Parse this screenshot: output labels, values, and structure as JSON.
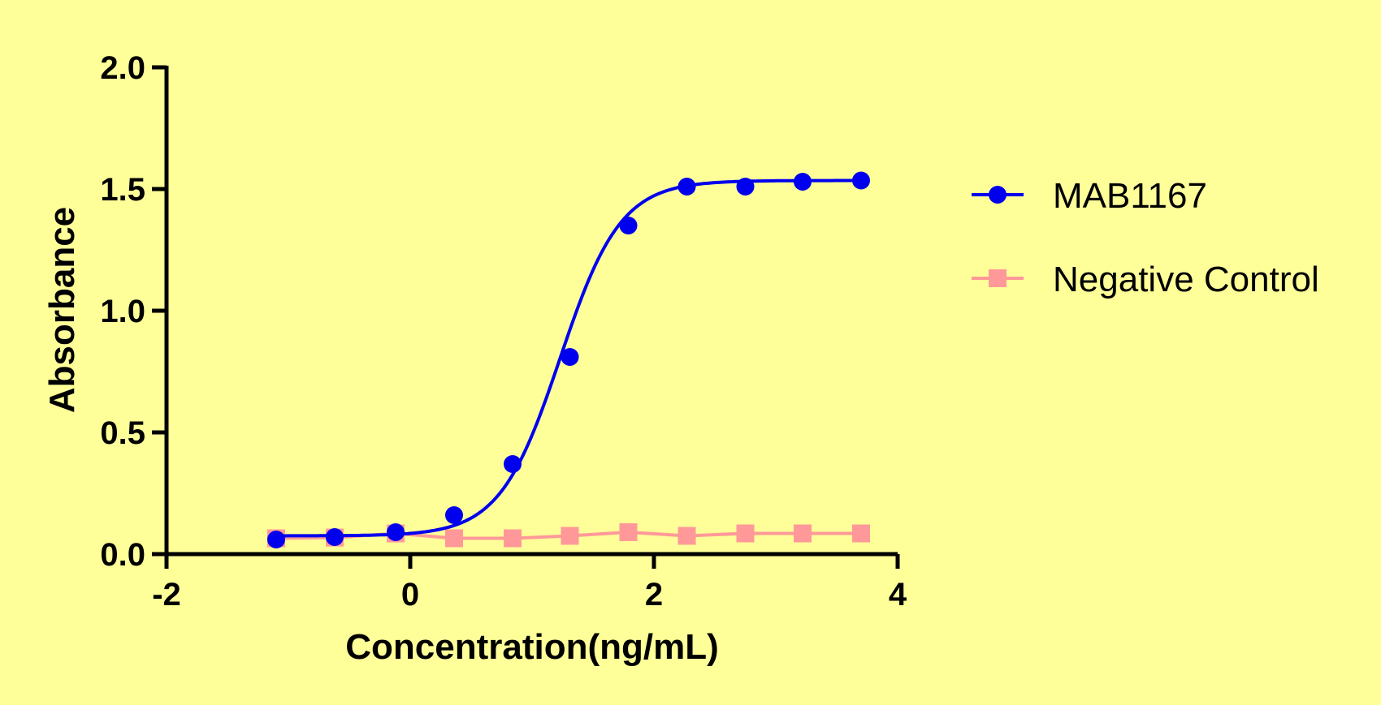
{
  "colors": {
    "background": "#ffff99",
    "series_1": "#0000ee",
    "series_2": "#ff9999"
  },
  "chart_data": {
    "type": "scatter",
    "xlabel": "Concentration(ng/mL)",
    "ylabel": "Absorbance",
    "xlim": [
      -2,
      4
    ],
    "ylim": [
      0,
      2
    ],
    "x_ticks": [
      -2,
      0,
      2,
      4
    ],
    "y_ticks": [
      "0.0",
      "0.5",
      "1.0",
      "1.5",
      "2.0"
    ],
    "grid": false,
    "legend_position": "right",
    "series": [
      {
        "name": "MAB1167",
        "marker": "circle",
        "color": "#0000ee",
        "fit": "4PL",
        "fit_params": {
          "bottom": 0.075,
          "top": 1.535,
          "log_ec50": 1.23,
          "hill": 1.75
        },
        "x": [
          -1.1,
          -0.62,
          -0.12,
          0.36,
          0.84,
          1.31,
          1.79,
          2.27,
          2.75,
          3.22,
          3.7
        ],
        "y": [
          0.06,
          0.07,
          0.09,
          0.16,
          0.37,
          0.81,
          1.35,
          1.51,
          1.51,
          1.53,
          1.535
        ]
      },
      {
        "name": "Negative Control",
        "marker": "square",
        "color": "#ff9999",
        "fit": "line",
        "x": [
          -1.1,
          -0.62,
          -0.12,
          0.36,
          0.84,
          1.31,
          1.79,
          2.27,
          2.75,
          3.22,
          3.7
        ],
        "y": [
          0.065,
          0.068,
          0.085,
          0.065,
          0.065,
          0.075,
          0.09,
          0.075,
          0.085,
          0.085,
          0.085
        ]
      }
    ]
  }
}
